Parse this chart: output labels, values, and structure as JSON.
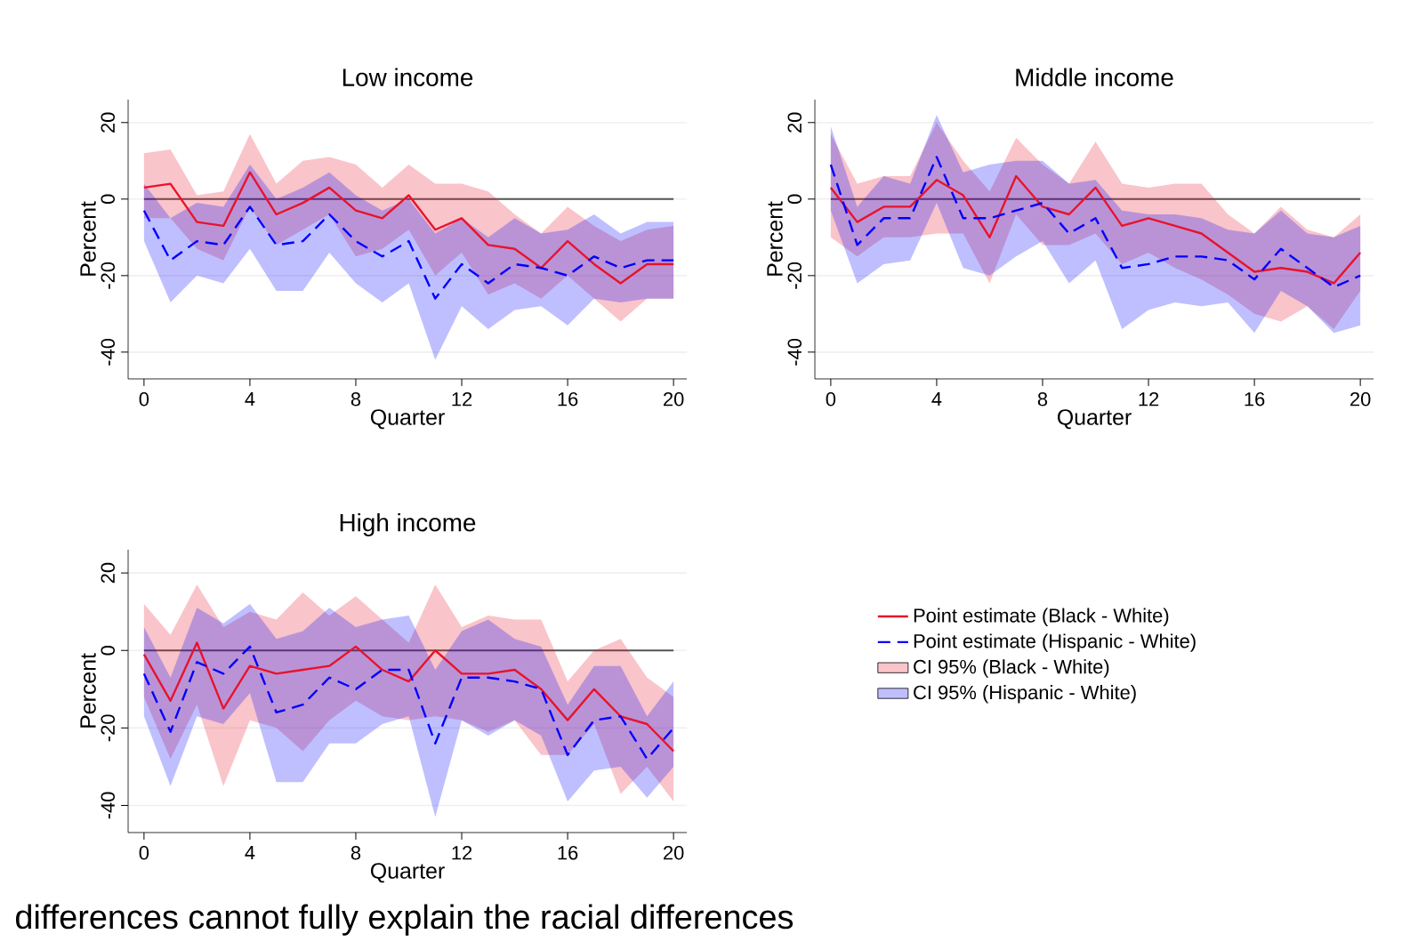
{
  "chart_data": [
    {
      "type": "line",
      "title": "Low income",
      "xlabel": "Quarter",
      "ylabel": "Percent",
      "x": [
        0,
        1,
        2,
        3,
        4,
        5,
        6,
        7,
        8,
        9,
        10,
        11,
        12,
        13,
        14,
        15,
        16,
        17,
        18,
        19,
        20
      ],
      "xlim": [
        -0.6,
        20.5
      ],
      "ylim": [
        -47,
        26
      ],
      "xticks": [
        0,
        4,
        8,
        12,
        16,
        20
      ],
      "yticks": [
        -40,
        -20,
        0,
        20
      ],
      "grid": "y",
      "ref_lines": [
        {
          "axis": "y",
          "value": 0,
          "color": "#555555"
        }
      ],
      "series": [
        {
          "color": "#e8132b",
          "line_style": "solid",
          "values": [
            3,
            4,
            -6,
            -7,
            7,
            -4,
            -1,
            3,
            -3,
            -5,
            1,
            -8,
            -5,
            -12,
            -13,
            -18,
            -11,
            -17,
            -22,
            -17,
            -17
          ],
          "upper": [
            12,
            13,
            1,
            2,
            17,
            4,
            10,
            11,
            9,
            3,
            9,
            4,
            4,
            2,
            -4,
            -9,
            -2,
            -7,
            -11,
            -8,
            -7
          ],
          "lower": [
            -5,
            -5,
            -13,
            -16,
            -2,
            -12,
            -8,
            -4,
            -15,
            -13,
            -8,
            -20,
            -14,
            -25,
            -22,
            -26,
            -20,
            -26,
            -32,
            -26,
            -26
          ]
        },
        {
          "color": "#0000ff",
          "line_style": "dashed",
          "values": [
            -3,
            -16,
            -11,
            -12,
            -2,
            -12,
            -11,
            -4,
            -11,
            -15,
            -11,
            -26,
            -17,
            -22,
            -17,
            -18,
            -20,
            -15,
            -18,
            -16,
            -16
          ],
          "upper": [
            4,
            -5,
            -1,
            -2,
            9,
            0,
            3,
            7,
            1,
            -3,
            0,
            -9,
            -5,
            -10,
            -5,
            -9,
            -8,
            -4,
            -9,
            -6,
            -6
          ],
          "lower": [
            -11,
            -27,
            -20,
            -22,
            -13,
            -24,
            -24,
            -14,
            -22,
            -27,
            -22,
            -42,
            -28,
            -34,
            -29,
            -28,
            -33,
            -26,
            -27,
            -26,
            -26
          ]
        }
      ]
    },
    {
      "type": "line",
      "title": "Middle income",
      "xlabel": "Quarter",
      "ylabel": "Percent",
      "x": [
        0,
        1,
        2,
        3,
        4,
        5,
        6,
        7,
        8,
        9,
        10,
        11,
        12,
        13,
        14,
        15,
        16,
        17,
        18,
        19,
        20
      ],
      "xlim": [
        -0.6,
        20.5
      ],
      "ylim": [
        -47,
        26
      ],
      "xticks": [
        0,
        4,
        8,
        12,
        16,
        20
      ],
      "yticks": [
        -40,
        -20,
        0,
        20
      ],
      "grid": "y",
      "ref_lines": [
        {
          "axis": "y",
          "value": 0,
          "color": "#555555"
        }
      ],
      "series": [
        {
          "color": "#e8132b",
          "line_style": "solid",
          "values": [
            3,
            -6,
            -2,
            -2,
            5,
            1,
            -10,
            6,
            -2,
            -4,
            3,
            -7,
            -5,
            -7,
            -9,
            -14,
            -19,
            -18,
            -19,
            -22,
            -14
          ],
          "upper": [
            17,
            4,
            6,
            6,
            20,
            10,
            2,
            16,
            9,
            4,
            15,
            4,
            3,
            4,
            4,
            -4,
            -9,
            -2,
            -8,
            -10,
            -4
          ],
          "lower": [
            -10,
            -15,
            -10,
            -10,
            -9,
            -9,
            -22,
            -4,
            -12,
            -12,
            -9,
            -17,
            -14,
            -18,
            -21,
            -25,
            -30,
            -32,
            -28,
            -34,
            -24
          ]
        },
        {
          "color": "#0000ff",
          "line_style": "dashed",
          "values": [
            9,
            -12,
            -5,
            -5,
            11,
            -5,
            -5,
            -3,
            -1,
            -9,
            -5,
            -18,
            -17,
            -15,
            -15,
            -16,
            -21,
            -13,
            -18,
            -23,
            -20
          ],
          "upper": [
            19,
            -2,
            6,
            4,
            22,
            7,
            9,
            10,
            10,
            4,
            5,
            -3,
            -4,
            -4,
            -5,
            -8,
            -9,
            -3,
            -9,
            -10,
            -7
          ],
          "lower": [
            -3,
            -22,
            -17,
            -16,
            -1,
            -18,
            -20,
            -15,
            -11,
            -22,
            -16,
            -34,
            -29,
            -27,
            -28,
            -27,
            -35,
            -24,
            -28,
            -35,
            -33
          ]
        }
      ]
    },
    {
      "type": "line",
      "title": "High income",
      "xlabel": "Quarter",
      "ylabel": "Percent",
      "x": [
        0,
        1,
        2,
        3,
        4,
        5,
        6,
        7,
        8,
        9,
        10,
        11,
        12,
        13,
        14,
        15,
        16,
        17,
        18,
        19,
        20
      ],
      "xlim": [
        -0.6,
        20.5
      ],
      "ylim": [
        -47,
        26
      ],
      "xticks": [
        0,
        4,
        8,
        12,
        16,
        20
      ],
      "yticks": [
        -40,
        -20,
        0,
        20
      ],
      "grid": "y",
      "legend": "right",
      "ref_lines": [
        {
          "axis": "y",
          "value": 0,
          "color": "#555555"
        }
      ],
      "annotations": [
        "CI 95% (Black - White)",
        "CI 95% (Hispanic - White)",
        "differences cannot fully explain the racial differences"
      ],
      "series": [
        {
          "name": "Point estimate (Black - White)",
          "color": "#e8132b",
          "line_style": "solid",
          "values": [
            -1,
            -13,
            2,
            -15,
            -4,
            -6,
            -5,
            -4,
            1,
            -5,
            -8,
            0,
            -6,
            -6,
            -5,
            -10,
            -18,
            -10,
            -17,
            -19,
            -26
          ],
          "upper": [
            12,
            4,
            17,
            6,
            10,
            8,
            15,
            9,
            14,
            8,
            2,
            17,
            6,
            9,
            8,
            8,
            -8,
            0,
            3,
            -7,
            -12
          ],
          "lower": [
            -12,
            -28,
            -14,
            -35,
            -18,
            -20,
            -26,
            -18,
            -13,
            -17,
            -18,
            -17,
            -18,
            -21,
            -18,
            -27,
            -27,
            -19,
            -37,
            -30,
            -39
          ]
        },
        {
          "name": "Point estimate (Hispanic - White)",
          "color": "#0000ff",
          "line_style": "dashed",
          "values": [
            -6,
            -21,
            -3,
            -6,
            1,
            -16,
            -14,
            -7,
            -10,
            -5,
            -5,
            -24,
            -7,
            -7,
            -8,
            -10,
            -27,
            -18,
            -17,
            -28,
            -20
          ],
          "upper": [
            6,
            -7,
            11,
            7,
            12,
            3,
            5,
            11,
            6,
            8,
            9,
            -5,
            5,
            8,
            3,
            1,
            -14,
            -4,
            -4,
            -17,
            -8
          ],
          "lower": [
            -17,
            -35,
            -17,
            -19,
            -11,
            -34,
            -34,
            -24,
            -24,
            -19,
            -17,
            -43,
            -18,
            -22,
            -18,
            -22,
            -39,
            -31,
            -30,
            -38,
            -30
          ]
        }
      ]
    }
  ]
}
